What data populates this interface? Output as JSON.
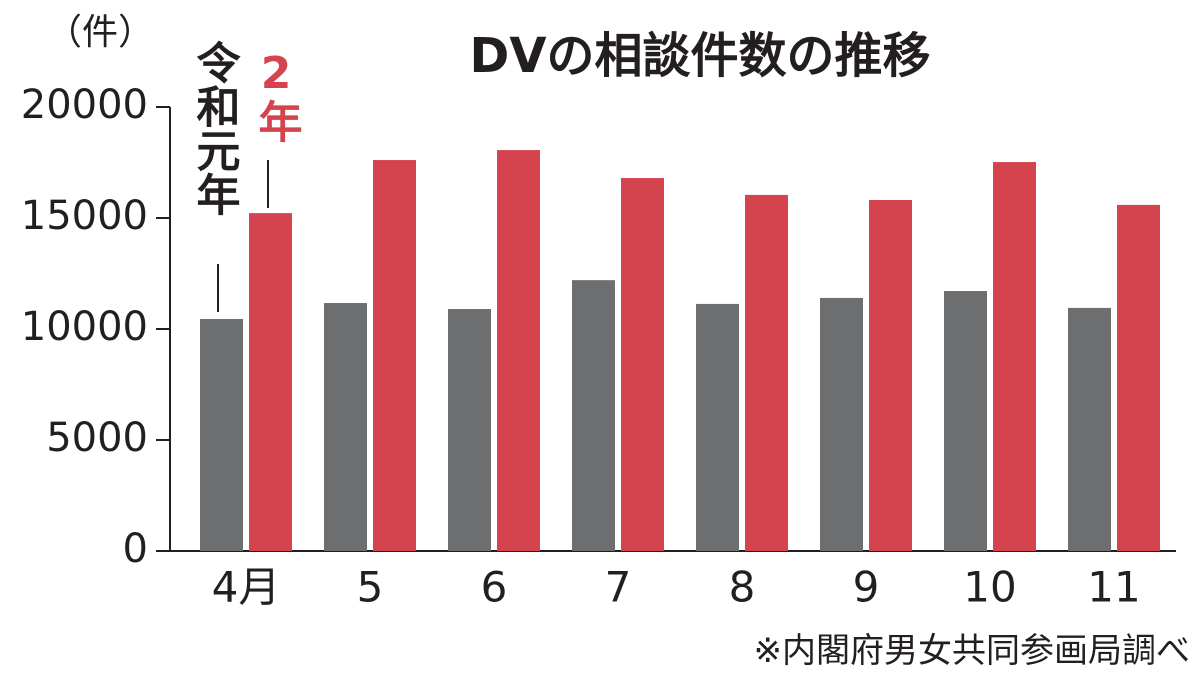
{
  "chart_data": {
    "type": "bar",
    "title": "DVの相談件数の推移",
    "y_unit": "（件）",
    "note": "※内閣府男女共同参画局調べ",
    "categories": [
      "4月",
      "5",
      "6",
      "7",
      "8",
      "9",
      "10",
      "11"
    ],
    "series": [
      {
        "name": "令和元年",
        "color": "#6d6e70",
        "values": [
          10450,
          11170,
          10900,
          12200,
          11130,
          11400,
          11710,
          10950
        ]
      },
      {
        "name": "2年",
        "color": "#d5434f",
        "values": [
          15220,
          17610,
          18060,
          16800,
          16040,
          15810,
          17520,
          15590
        ]
      }
    ],
    "ylim": [
      0,
      20000
    ],
    "yticks": [
      0,
      5000,
      10000,
      15000,
      20000
    ]
  }
}
